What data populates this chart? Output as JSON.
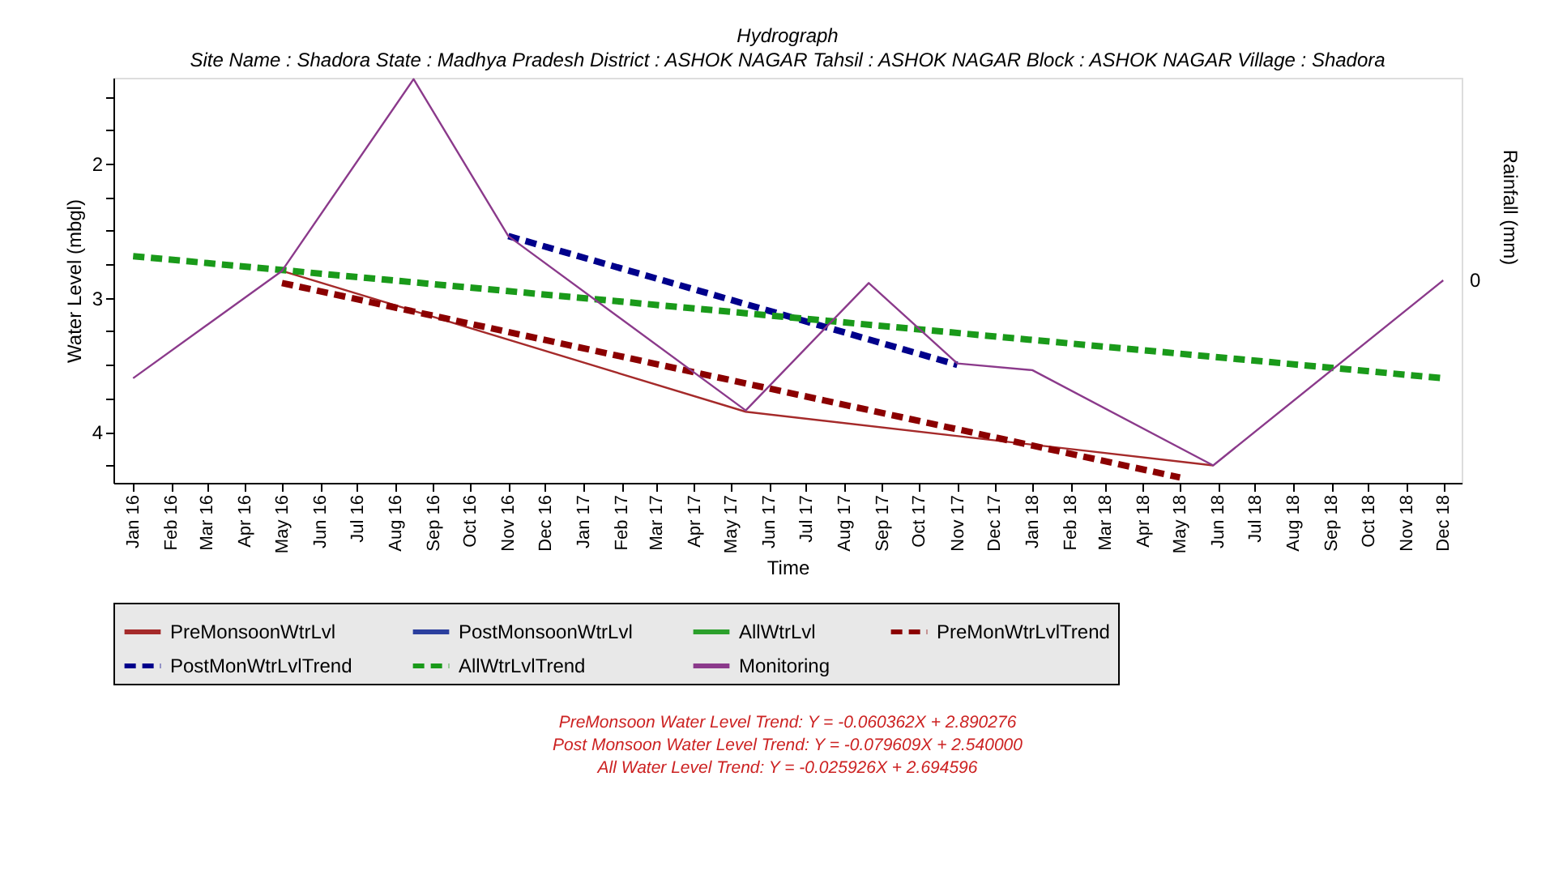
{
  "chart_data": {
    "type": "line",
    "title": "Hydrograph",
    "subtitle": "Site Name : Shadora  State : Madhya Pradesh District : ASHOK NAGAR  Tahsil : ASHOK NAGAR  Block : ASHOK NAGAR Village : Shadora",
    "xlabel": "Time",
    "ylabel": "Water Level (mbgl)",
    "y2label": "Rainfall (mm)",
    "xlim": [
      "2015-12-16",
      "2018-12-16"
    ],
    "xticks": [
      {
        "value": "2016-01",
        "label": "Jan 16"
      },
      {
        "value": "2016-02",
        "label": "Feb 16"
      },
      {
        "value": "2016-03",
        "label": "Mar 16"
      },
      {
        "value": "2016-04",
        "label": "Apr 16"
      },
      {
        "value": "2016-05",
        "label": "May 16"
      },
      {
        "value": "2016-06",
        "label": "Jun 16"
      },
      {
        "value": "2016-07",
        "label": "Jul 16"
      },
      {
        "value": "2016-08",
        "label": "Aug 16"
      },
      {
        "value": "2016-09",
        "label": "Sep 16"
      },
      {
        "value": "2016-10",
        "label": "Oct 16"
      },
      {
        "value": "2016-11",
        "label": "Nov 16"
      },
      {
        "value": "2016-12",
        "label": "Dec 16"
      },
      {
        "value": "2017-01",
        "label": "Jan 17"
      },
      {
        "value": "2017-02",
        "label": "Feb 17"
      },
      {
        "value": "2017-03",
        "label": "Mar 17"
      },
      {
        "value": "2017-04",
        "label": "Apr 17"
      },
      {
        "value": "2017-05",
        "label": "May 17"
      },
      {
        "value": "2017-06",
        "label": "Jun 17"
      },
      {
        "value": "2017-07",
        "label": "Jul 17"
      },
      {
        "value": "2017-08",
        "label": "Aug 17"
      },
      {
        "value": "2017-09",
        "label": "Sep 17"
      },
      {
        "value": "2017-10",
        "label": "Oct 17"
      },
      {
        "value": "2017-11",
        "label": "Nov 17"
      },
      {
        "value": "2017-12",
        "label": "Dec 17"
      },
      {
        "value": "2018-01",
        "label": "Jan 18"
      },
      {
        "value": "2018-02",
        "label": "Feb 18"
      },
      {
        "value": "2018-03",
        "label": "Mar 18"
      },
      {
        "value": "2018-04",
        "label": "Apr 18"
      },
      {
        "value": "2018-05",
        "label": "May 18"
      },
      {
        "value": "2018-06",
        "label": "Jun 18"
      },
      {
        "value": "2018-07",
        "label": "Jul 18"
      },
      {
        "value": "2018-08",
        "label": "Aug 18"
      },
      {
        "value": "2018-09",
        "label": "Sep 18"
      },
      {
        "value": "2018-10",
        "label": "Oct 18"
      },
      {
        "value": "2018-11",
        "label": "Nov 18"
      },
      {
        "value": "2018-12",
        "label": "Dec 18"
      }
    ],
    "ylim": [
      4.38,
      1.36
    ],
    "yticks": [
      {
        "value": 1.5,
        "label": null
      },
      {
        "value": 1.75,
        "label": null
      },
      2,
      {
        "value": 2.25,
        "label": null
      },
      {
        "value": 2.5,
        "label": null
      },
      {
        "value": 2.75,
        "label": null
      },
      3,
      {
        "value": 3.25,
        "label": null
      },
      {
        "value": 3.5,
        "label": null
      },
      {
        "value": 3.75,
        "label": null
      },
      4,
      {
        "value": 4.25,
        "label": null
      }
    ],
    "grid": false,
    "legend": "bottom",
    "marker": "none",
    "series": [
      {
        "name": "PreMonsoonWtrLvl",
        "color": "#a52a2a",
        "line_style": "solid",
        "x": [
          "2016-05",
          "2017-05-13",
          "2018-05-28"
        ],
        "values": [
          2.8,
          3.85,
          4.25
        ]
      },
      {
        "name": "PostMonsoonWtrLvl",
        "color": "#2b3f9e",
        "line_style": "solid"
      },
      {
        "name": "AllWtrLvl",
        "color": "#2ca02c",
        "line_style": "solid"
      },
      {
        "name": "PreMonWtrLvlTrend",
        "color": "#8b0000",
        "line_style": "dashed",
        "x": [
          "2016-05",
          "2018-05"
        ],
        "values": [
          2.89,
          4.34
        ]
      },
      {
        "name": "PostMonWtrLvlTrend",
        "color": "#00008b",
        "line_style": "dashed",
        "x": [
          "2016-11",
          "2017-11"
        ],
        "values": [
          2.54,
          3.5
        ]
      },
      {
        "name": "AllWtrLvlTrend",
        "color": "#1a9a1a",
        "line_style": "dashed",
        "x": [
          "2016-01",
          "2018-12"
        ],
        "values": [
          2.69,
          3.6
        ]
      },
      {
        "name": "Monitoring",
        "color": "#8b3a8b",
        "line_style": "solid",
        "x": [
          "2016-01",
          "2016-05",
          "2016-08-16",
          "2016-11",
          "2017-05-13",
          "2017-08-21",
          "2017-11",
          "2018-01",
          "2018-05-28",
          "2018-12"
        ],
        "values": [
          3.6,
          2.8,
          1.37,
          2.54,
          3.84,
          2.89,
          3.49,
          3.54,
          4.25,
          2.87
        ]
      }
    ],
    "annotations": [
      "0",
      "PreMonsoon Water Level Trend: Y = -0.060362X + 2.890276",
      "Post Monsoon Water Level Trend: Y = -0.079609X + 2.540000",
      "All Water Level Trend: Y = -0.025926X + 2.694596"
    ]
  }
}
